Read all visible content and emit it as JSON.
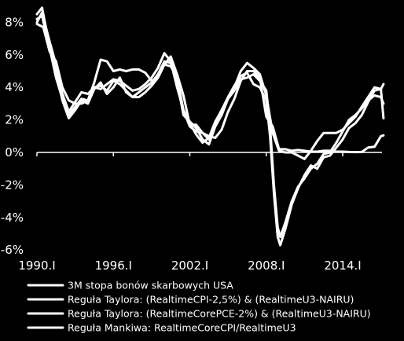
{
  "chart_data": {
    "type": "line",
    "title": "",
    "xlabel": "",
    "ylabel": "",
    "x_range": [
      1990.0,
      2017.5
    ],
    "ylim": [
      -6,
      9
    ],
    "y_ticks": [
      {
        "value": 8,
        "label": "8%"
      },
      {
        "value": 6,
        "label": "6%"
      },
      {
        "value": 4,
        "label": "4%"
      },
      {
        "value": 2,
        "label": "2%"
      },
      {
        "value": 0,
        "label": "0%"
      },
      {
        "value": -2,
        "label": "-2%"
      },
      {
        "value": -4,
        "label": "-4%"
      },
      {
        "value": -6,
        "label": "-6%"
      }
    ],
    "x_ticks": [
      {
        "value": 1990.0,
        "label": "1990.I"
      },
      {
        "value": 1996.0,
        "label": "1996.I"
      },
      {
        "value": 2002.0,
        "label": "2002.I"
      },
      {
        "value": 2008.0,
        "label": "2008.I"
      },
      {
        "value": 2014.0,
        "label": "2014.I"
      }
    ],
    "grid": false,
    "legend_position": "bottom",
    "series_color": "#ffffff",
    "series": [
      {
        "name": "3M stopa bonów skarbowych USA",
        "points": [
          [
            1990.0,
            7.9
          ],
          [
            1990.5,
            7.7
          ],
          [
            1991.0,
            6.2
          ],
          [
            1991.5,
            5.6
          ],
          [
            1992.0,
            4.0
          ],
          [
            1992.5,
            3.2
          ],
          [
            1993.0,
            3.0
          ],
          [
            1993.5,
            3.0
          ],
          [
            1994.0,
            3.2
          ],
          [
            1994.5,
            4.3
          ],
          [
            1995.0,
            5.7
          ],
          [
            1995.5,
            5.6
          ],
          [
            1996.0,
            5.0
          ],
          [
            1996.5,
            5.1
          ],
          [
            1997.0,
            5.0
          ],
          [
            1997.5,
            5.1
          ],
          [
            1998.0,
            5.1
          ],
          [
            1998.5,
            4.9
          ],
          [
            1999.0,
            4.4
          ],
          [
            1999.5,
            4.6
          ],
          [
            2000.0,
            5.4
          ],
          [
            2000.5,
            5.9
          ],
          [
            2001.0,
            4.8
          ],
          [
            2001.5,
            3.5
          ],
          [
            2002.0,
            1.7
          ],
          [
            2002.5,
            1.7
          ],
          [
            2003.0,
            1.2
          ],
          [
            2003.5,
            1.0
          ],
          [
            2004.0,
            0.9
          ],
          [
            2004.5,
            1.4
          ],
          [
            2005.0,
            2.5
          ],
          [
            2005.5,
            3.3
          ],
          [
            2006.0,
            4.4
          ],
          [
            2006.5,
            5.0
          ],
          [
            2007.0,
            5.0
          ],
          [
            2007.5,
            4.6
          ],
          [
            2008.0,
            2.2
          ],
          [
            2008.5,
            1.6
          ],
          [
            2009.0,
            0.2
          ],
          [
            2009.5,
            0.2
          ],
          [
            2010.0,
            0.1
          ],
          [
            2010.5,
            0.15
          ],
          [
            2011.0,
            0.1
          ],
          [
            2011.5,
            0.05
          ],
          [
            2012.0,
            0.05
          ],
          [
            2012.5,
            0.1
          ],
          [
            2013.0,
            0.1
          ],
          [
            2013.5,
            0.05
          ],
          [
            2014.0,
            0.05
          ],
          [
            2014.5,
            0.03
          ],
          [
            2015.0,
            0.02
          ],
          [
            2015.5,
            0.03
          ],
          [
            2016.0,
            0.3
          ],
          [
            2016.5,
            0.35
          ],
          [
            2017.0,
            1.0
          ],
          [
            2017.2,
            1.05
          ]
        ]
      },
      {
        "name": "Reguła Taylora: (RealtimeCPI-2,5%) & (RealtimeU3-NAIRU)",
        "points": [
          [
            1990.0,
            8.5
          ],
          [
            1990.4,
            8.9
          ],
          [
            1991.0,
            6.5
          ],
          [
            1991.5,
            5.0
          ],
          [
            1992.0,
            3.2
          ],
          [
            1992.5,
            2.1
          ],
          [
            1993.0,
            2.6
          ],
          [
            1993.5,
            3.2
          ],
          [
            1994.0,
            3.0
          ],
          [
            1994.5,
            3.9
          ],
          [
            1995.0,
            4.3
          ],
          [
            1995.5,
            3.6
          ],
          [
            1996.0,
            4.0
          ],
          [
            1996.5,
            4.6
          ],
          [
            1997.0,
            3.7
          ],
          [
            1997.5,
            3.4
          ],
          [
            1998.0,
            3.4
          ],
          [
            1998.5,
            3.7
          ],
          [
            1999.0,
            4.1
          ],
          [
            1999.5,
            4.6
          ],
          [
            2000.0,
            5.4
          ],
          [
            2000.5,
            5.3
          ],
          [
            2001.0,
            4.6
          ],
          [
            2001.5,
            2.6
          ],
          [
            2002.0,
            1.6
          ],
          [
            2002.5,
            1.3
          ],
          [
            2003.0,
            1.2
          ],
          [
            2003.5,
            0.8
          ],
          [
            2004.0,
            1.8
          ],
          [
            2004.5,
            2.6
          ],
          [
            2005.0,
            3.4
          ],
          [
            2005.5,
            4.1
          ],
          [
            2006.0,
            4.7
          ],
          [
            2006.5,
            4.9
          ],
          [
            2007.0,
            4.2
          ],
          [
            2007.5,
            4.0
          ],
          [
            2008.0,
            3.2
          ],
          [
            2008.3,
            1.0
          ],
          [
            2008.6,
            -2.5
          ],
          [
            2008.9,
            -5.2
          ],
          [
            2009.1,
            -5.7
          ],
          [
            2009.5,
            -4.7
          ],
          [
            2010.0,
            -3.2
          ],
          [
            2010.5,
            -2.2
          ],
          [
            2011.0,
            -1.4
          ],
          [
            2011.5,
            -0.8
          ],
          [
            2012.0,
            -1.0
          ],
          [
            2012.5,
            -0.3
          ],
          [
            2013.0,
            -0.2
          ],
          [
            2013.5,
            0.3
          ],
          [
            2014.0,
            0.8
          ],
          [
            2014.5,
            1.5
          ],
          [
            2015.0,
            1.8
          ],
          [
            2015.5,
            2.3
          ],
          [
            2016.0,
            3.1
          ],
          [
            2016.5,
            3.8
          ],
          [
            2017.0,
            3.9
          ],
          [
            2017.2,
            2.1
          ]
        ]
      },
      {
        "name": "Reguła Taylora: (RealtimeCorePCE-2%) & (RealtimeU3-NAIRU)",
        "points": [
          [
            1990.0,
            8.2
          ],
          [
            1990.4,
            8.4
          ],
          [
            1991.0,
            6.4
          ],
          [
            1991.5,
            4.6
          ],
          [
            1992.0,
            3.3
          ],
          [
            1992.5,
            2.3
          ],
          [
            1993.0,
            2.8
          ],
          [
            1993.5,
            3.3
          ],
          [
            1994.0,
            3.2
          ],
          [
            1994.5,
            4.0
          ],
          [
            1995.0,
            4.1
          ],
          [
            1995.5,
            3.8
          ],
          [
            1996.0,
            4.4
          ],
          [
            1996.5,
            4.2
          ],
          [
            1997.0,
            3.8
          ],
          [
            1997.5,
            3.4
          ],
          [
            1998.0,
            3.7
          ],
          [
            1998.5,
            4.0
          ],
          [
            1999.0,
            4.3
          ],
          [
            1999.5,
            4.8
          ],
          [
            2000.0,
            5.6
          ],
          [
            2000.5,
            5.5
          ],
          [
            2001.0,
            4.4
          ],
          [
            2001.5,
            2.3
          ],
          [
            2002.0,
            1.9
          ],
          [
            2002.5,
            1.5
          ],
          [
            2003.0,
            0.8
          ],
          [
            2003.5,
            0.5
          ],
          [
            2004.0,
            1.6
          ],
          [
            2004.5,
            2.3
          ],
          [
            2005.0,
            3.3
          ],
          [
            2005.5,
            3.8
          ],
          [
            2006.0,
            4.5
          ],
          [
            2006.5,
            4.6
          ],
          [
            2007.0,
            4.8
          ],
          [
            2007.5,
            4.4
          ],
          [
            2008.0,
            3.8
          ],
          [
            2008.3,
            1.6
          ],
          [
            2008.6,
            -2.0
          ],
          [
            2008.9,
            -4.6
          ],
          [
            2009.1,
            -5.2
          ],
          [
            2009.5,
            -4.3
          ],
          [
            2010.0,
            -3.0
          ],
          [
            2010.5,
            -2.1
          ],
          [
            2011.0,
            -1.6
          ],
          [
            2011.5,
            -1.0
          ],
          [
            2012.0,
            -0.7
          ],
          [
            2012.5,
            -0.1
          ],
          [
            2013.0,
            0.0
          ],
          [
            2013.5,
            0.6
          ],
          [
            2014.0,
            1.3
          ],
          [
            2014.5,
            2.0
          ],
          [
            2015.0,
            2.3
          ],
          [
            2015.5,
            2.7
          ],
          [
            2016.0,
            3.2
          ],
          [
            2016.5,
            3.5
          ],
          [
            2017.0,
            3.4
          ],
          [
            2017.2,
            3.0
          ]
        ]
      },
      {
        "name": "Reguła Mankiwa: RealtimeCoreCPI/RealtimeU3",
        "points": [
          [
            1990.0,
            8.0
          ],
          [
            1990.4,
            8.6
          ],
          [
            1991.0,
            6.8
          ],
          [
            1991.5,
            5.4
          ],
          [
            1992.0,
            3.6
          ],
          [
            1992.5,
            2.5
          ],
          [
            1993.0,
            3.1
          ],
          [
            1993.5,
            3.7
          ],
          [
            1994.0,
            3.6
          ],
          [
            1994.5,
            4.0
          ],
          [
            1995.0,
            3.9
          ],
          [
            1995.5,
            4.2
          ],
          [
            1996.0,
            4.5
          ],
          [
            1996.5,
            4.4
          ],
          [
            1997.0,
            4.1
          ],
          [
            1997.5,
            3.8
          ],
          [
            1998.0,
            3.9
          ],
          [
            1998.5,
            4.2
          ],
          [
            1999.0,
            4.6
          ],
          [
            1999.5,
            5.2
          ],
          [
            2000.0,
            6.1
          ],
          [
            2000.5,
            5.6
          ],
          [
            2001.0,
            4.0
          ],
          [
            2001.5,
            2.6
          ],
          [
            2002.0,
            1.8
          ],
          [
            2002.5,
            1.1
          ],
          [
            2003.0,
            0.6
          ],
          [
            2003.5,
            0.9
          ],
          [
            2004.0,
            1.9
          ],
          [
            2004.5,
            2.6
          ],
          [
            2005.0,
            3.3
          ],
          [
            2005.5,
            4.0
          ],
          [
            2006.0,
            5.0
          ],
          [
            2006.5,
            5.5
          ],
          [
            2007.0,
            5.2
          ],
          [
            2007.5,
            4.8
          ],
          [
            2008.0,
            3.5
          ],
          [
            2008.5,
            1.2
          ],
          [
            2009.0,
            0.1
          ],
          [
            2009.5,
            0.0
          ],
          [
            2010.0,
            0.0
          ],
          [
            2010.5,
            -0.2
          ],
          [
            2011.0,
            -0.4
          ],
          [
            2011.5,
            0.1
          ],
          [
            2012.0,
            0.7
          ],
          [
            2012.5,
            1.2
          ],
          [
            2013.0,
            1.2
          ],
          [
            2013.5,
            1.2
          ],
          [
            2014.0,
            1.4
          ],
          [
            2014.5,
            1.8
          ],
          [
            2015.0,
            2.2
          ],
          [
            2015.5,
            2.8
          ],
          [
            2016.0,
            3.4
          ],
          [
            2016.5,
            4.0
          ],
          [
            2017.0,
            3.9
          ],
          [
            2017.2,
            4.2
          ]
        ]
      }
    ]
  }
}
